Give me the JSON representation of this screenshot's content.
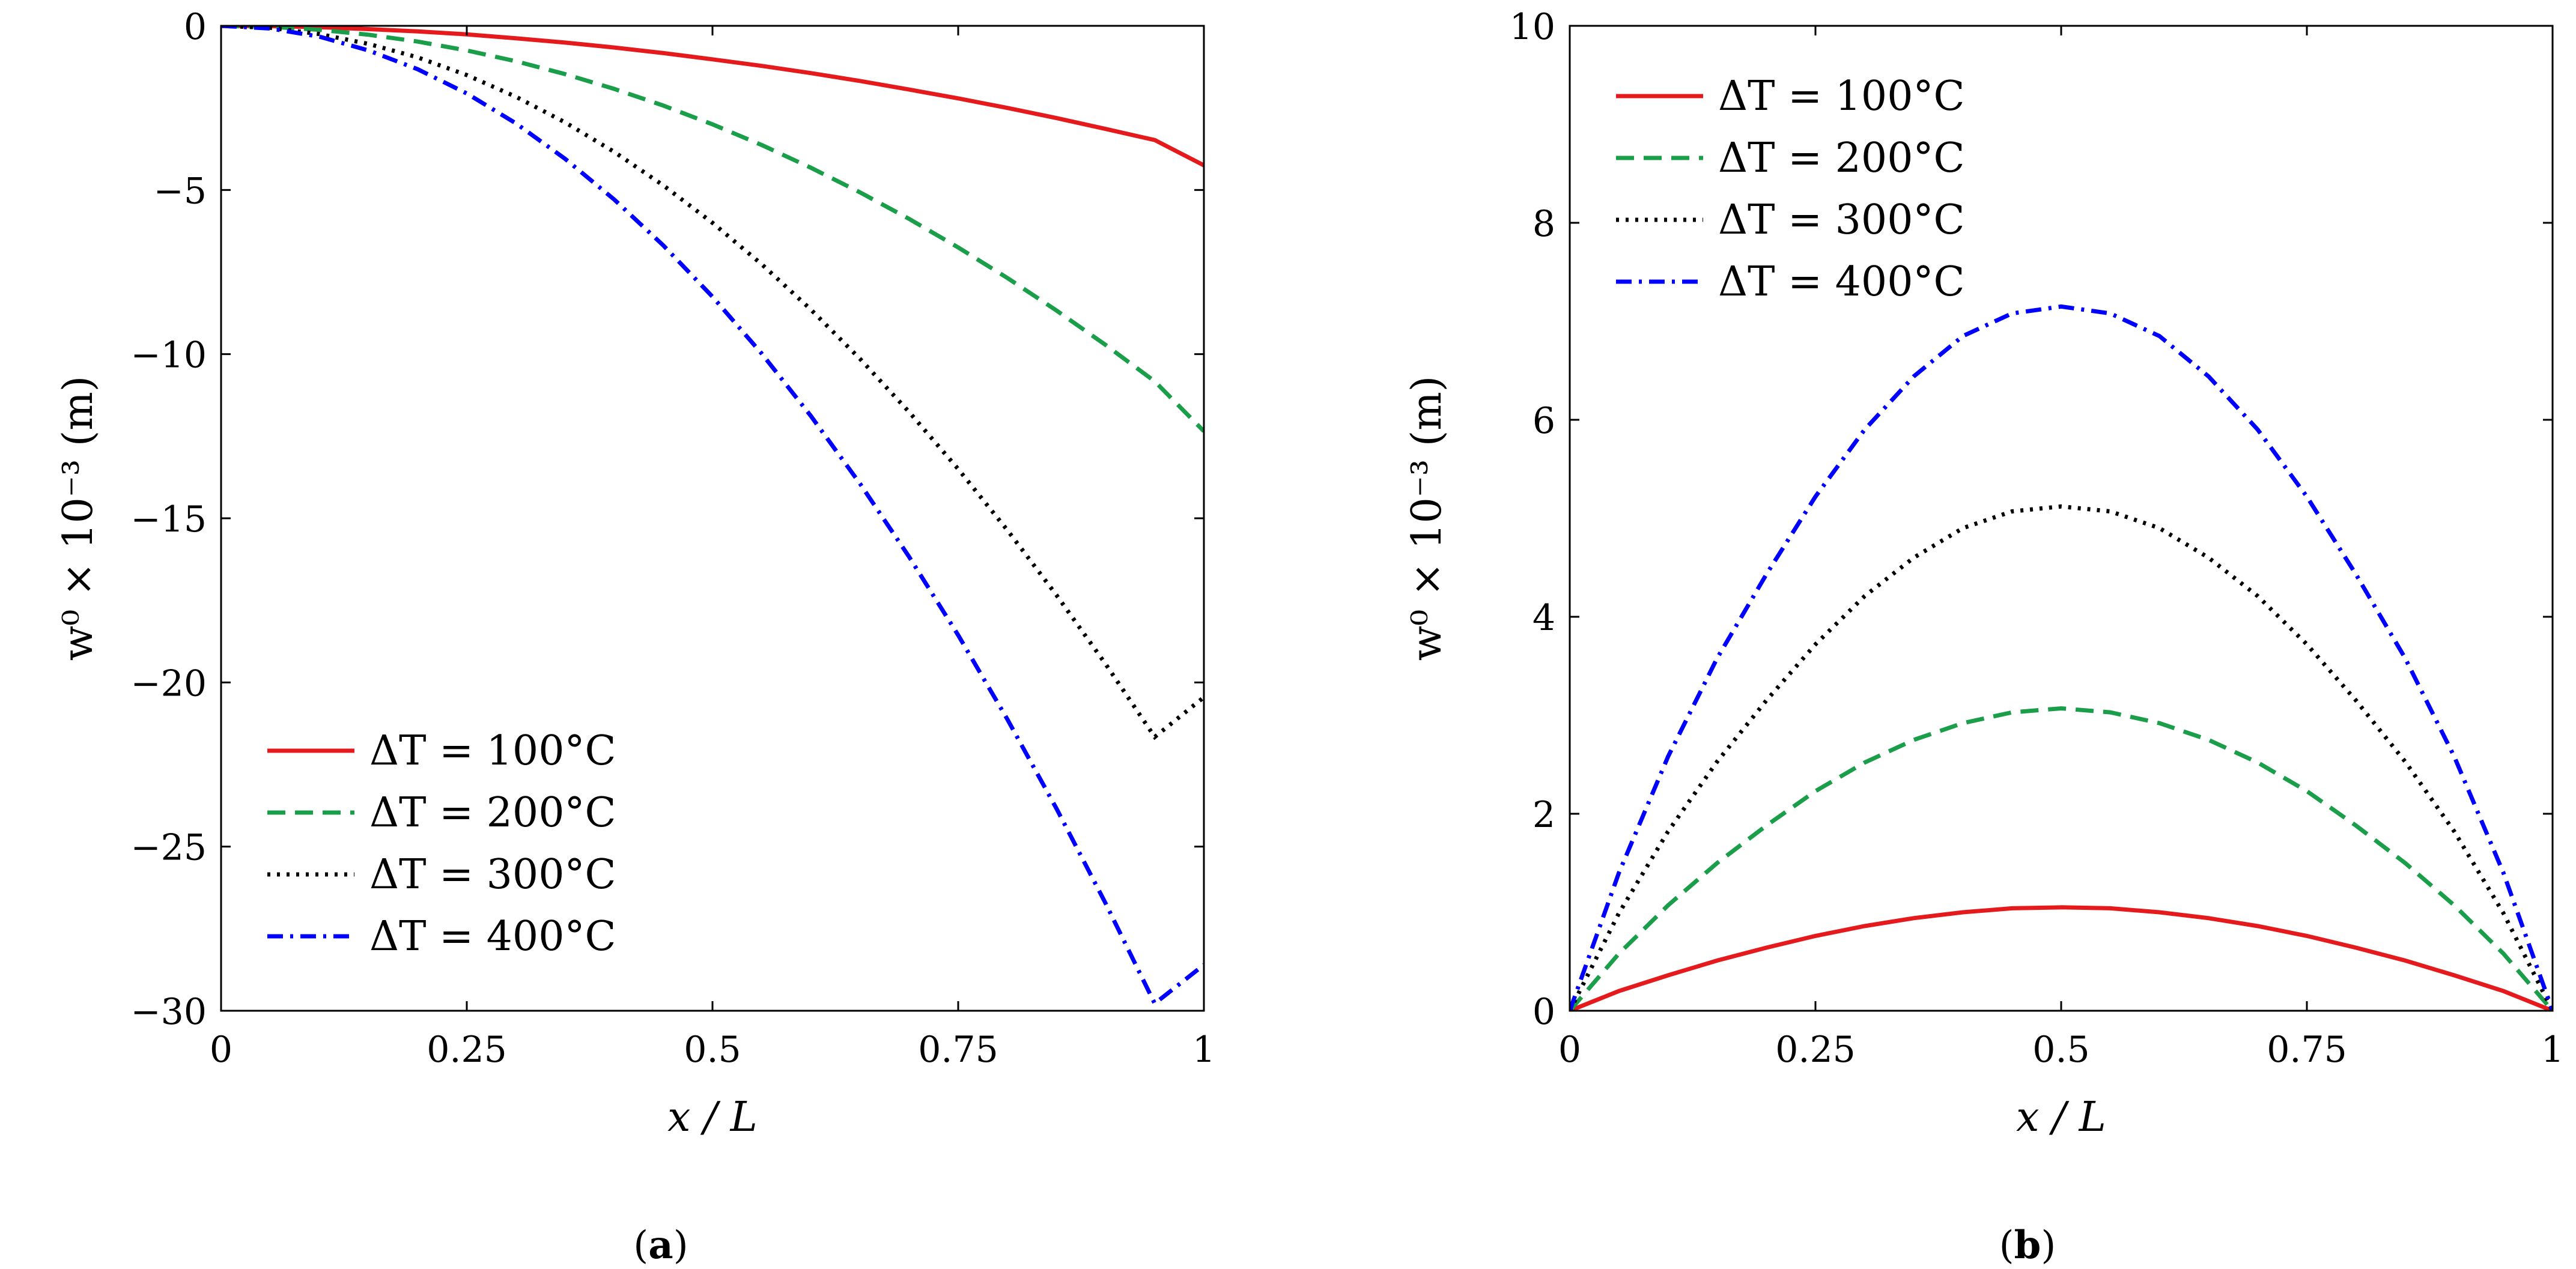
{
  "chart_data": [
    {
      "type": "line",
      "panel_caption": "(a)",
      "caption_letter": "a",
      "xlabel": "x / L",
      "ylabel": "w⁰ × 10⁻³ (m)",
      "xlim": [
        0,
        1
      ],
      "ylim": [
        -30,
        0
      ],
      "xticks": [
        0,
        0.25,
        0.5,
        0.75,
        1
      ],
      "xtick_labels": [
        "0",
        "0.25",
        "0.5",
        "0.75",
        "1"
      ],
      "yticks": [
        0,
        -5,
        -10,
        -15,
        -20,
        -25,
        -30
      ],
      "ytick_labels": [
        "0",
        "−5",
        "−10",
        "−15",
        "−20",
        "−25",
        "−30"
      ],
      "legend_position": "bottom-left",
      "x": [
        0,
        0.05,
        0.1,
        0.15,
        0.2,
        0.25,
        0.3,
        0.35,
        0.4,
        0.45,
        0.5,
        0.55,
        0.6,
        0.65,
        0.7,
        0.75,
        0.8,
        0.85,
        0.9,
        0.95,
        1
      ],
      "series": [
        {
          "name": "ΔT = 100°C",
          "color": "#e41a1c",
          "dash": "solid",
          "values": [
            0,
            -0.01,
            -0.04,
            -0.1,
            -0.17,
            -0.26,
            -0.38,
            -0.51,
            -0.66,
            -0.83,
            -1.02,
            -1.22,
            -1.44,
            -1.68,
            -1.94,
            -2.21,
            -2.5,
            -2.81,
            -3.14,
            -3.48,
            -4.25
          ]
        },
        {
          "name": "ΔT = 200°C",
          "color": "#1a9e4a",
          "dash": "dashed",
          "values": [
            0,
            -0.03,
            -0.12,
            -0.27,
            -0.48,
            -0.75,
            -1.08,
            -1.47,
            -1.92,
            -2.43,
            -3.0,
            -3.63,
            -4.32,
            -5.07,
            -5.88,
            -6.75,
            -7.68,
            -8.67,
            -9.72,
            -10.83,
            -12.35
          ]
        },
        {
          "name": "ΔT = 300°C",
          "color": "#000000",
          "dash": "dotted",
          "values": [
            0,
            -0.06,
            -0.25,
            -0.55,
            -0.96,
            -1.5,
            -2.16,
            -2.94,
            -3.84,
            -4.86,
            -6.0,
            -7.26,
            -8.64,
            -10.14,
            -11.76,
            -13.5,
            -15.36,
            -17.34,
            -19.44,
            -21.66,
            -20.45
          ]
        },
        {
          "name": "ΔT = 400°C",
          "color": "#0000ff",
          "dash": "dashdot",
          "values": [
            0,
            -0.08,
            -0.33,
            -0.75,
            -1.32,
            -2.06,
            -2.97,
            -4.05,
            -5.29,
            -6.69,
            -8.25,
            -9.98,
            -11.88,
            -13.94,
            -16.17,
            -18.56,
            -21.12,
            -23.84,
            -26.73,
            -29.78,
            -28.6
          ]
        }
      ]
    },
    {
      "type": "line",
      "panel_caption": "(b)",
      "caption_letter": "b",
      "xlabel": "x / L",
      "ylabel": "w⁰ × 10⁻³ (m)",
      "xlim": [
        0,
        1
      ],
      "ylim": [
        0,
        10
      ],
      "xticks": [
        0,
        0.25,
        0.5,
        0.75,
        1
      ],
      "xtick_labels": [
        "0",
        "0.25",
        "0.5",
        "0.75",
        "1"
      ],
      "yticks": [
        0,
        2,
        4,
        6,
        8,
        10
      ],
      "ytick_labels": [
        "0",
        "2",
        "4",
        "6",
        "8",
        "10"
      ],
      "legend_position": "top-left",
      "x": [
        0,
        0.05,
        0.1,
        0.15,
        0.2,
        0.25,
        0.3,
        0.35,
        0.4,
        0.45,
        0.5,
        0.55,
        0.6,
        0.65,
        0.7,
        0.75,
        0.8,
        0.85,
        0.9,
        0.95,
        1
      ],
      "series": [
        {
          "name": "ΔT = 100°C",
          "color": "#e41a1c",
          "dash": "solid",
          "values": [
            0,
            0.2,
            0.36,
            0.51,
            0.64,
            0.76,
            0.86,
            0.94,
            1.0,
            1.04,
            1.05,
            1.04,
            1.0,
            0.94,
            0.86,
            0.76,
            0.64,
            0.51,
            0.36,
            0.2,
            0
          ]
        },
        {
          "name": "ΔT = 200°C",
          "color": "#1a9e4a",
          "dash": "dashed",
          "values": [
            0,
            0.58,
            1.07,
            1.5,
            1.88,
            2.23,
            2.52,
            2.75,
            2.92,
            3.03,
            3.07,
            3.03,
            2.92,
            2.75,
            2.52,
            2.23,
            1.88,
            1.5,
            1.07,
            0.58,
            0
          ]
        },
        {
          "name": "ΔT = 300°C",
          "color": "#000000",
          "dash": "dotted",
          "values": [
            0,
            0.99,
            1.82,
            2.53,
            3.15,
            3.72,
            4.21,
            4.6,
            4.9,
            5.07,
            5.12,
            5.07,
            4.9,
            4.6,
            4.21,
            3.72,
            3.15,
            2.53,
            1.82,
            0.99,
            0
          ]
        },
        {
          "name": "ΔT = 400°C",
          "color": "#0000ff",
          "dash": "dashdot",
          "values": [
            0,
            1.4,
            2.58,
            3.58,
            4.43,
            5.22,
            5.9,
            6.44,
            6.85,
            7.08,
            7.15,
            7.08,
            6.85,
            6.44,
            5.9,
            5.22,
            4.43,
            3.58,
            2.58,
            1.4,
            0
          ]
        }
      ]
    }
  ]
}
